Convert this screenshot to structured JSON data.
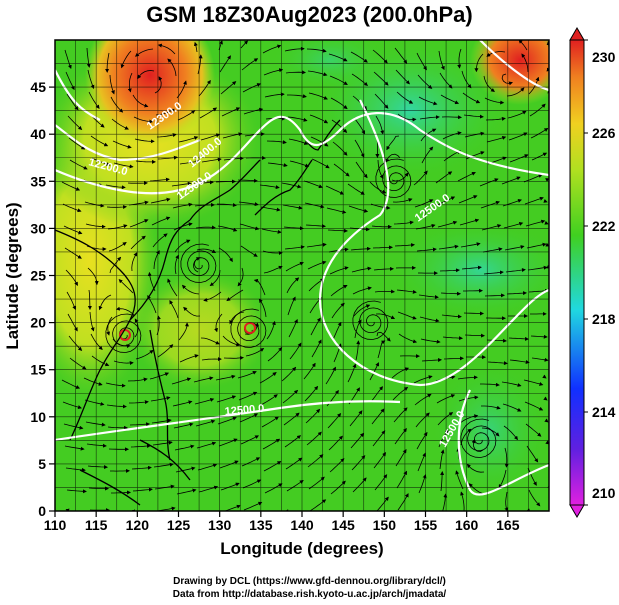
{
  "title": "GSM 18Z30Aug2023 (200.0hPa)",
  "xlabel": "Longitude (degrees)",
  "ylabel": "Latitude  (degrees)",
  "credits": {
    "line1": "Drawing by DCL (https://www.gfd-dennou.org/library/dcl/)",
    "line2": "Data from http://database.rish.kyoto-u.ac.jp/arch/jmadata/"
  },
  "x_ticks": [
    "110",
    "115",
    "120",
    "125",
    "130",
    "135",
    "140",
    "145",
    "150",
    "155",
    "160",
    "165"
  ],
  "y_ticks": [
    "0",
    "5",
    "10",
    "15",
    "20",
    "25",
    "30",
    "35",
    "40",
    "45"
  ],
  "colorbar_ticks": [
    "210",
    "214",
    "218",
    "222",
    "226",
    "230"
  ],
  "contour_labels": [
    "12300.0",
    "12200.0",
    "12400.0",
    "12500.0",
    "12500.0",
    "12500.0",
    "12500.0"
  ],
  "map": {
    "lon_range": [
      110,
      170
    ],
    "lat_range": [
      0,
      50
    ],
    "grid": true,
    "colors": {
      "low": "#e020e0",
      "mid_blue": "#1040ff",
      "cyan": "#20d8d8",
      "green": "#40d020",
      "yellow": "#e8e020",
      "orange": "#f08020",
      "high": "#e02020"
    }
  }
}
